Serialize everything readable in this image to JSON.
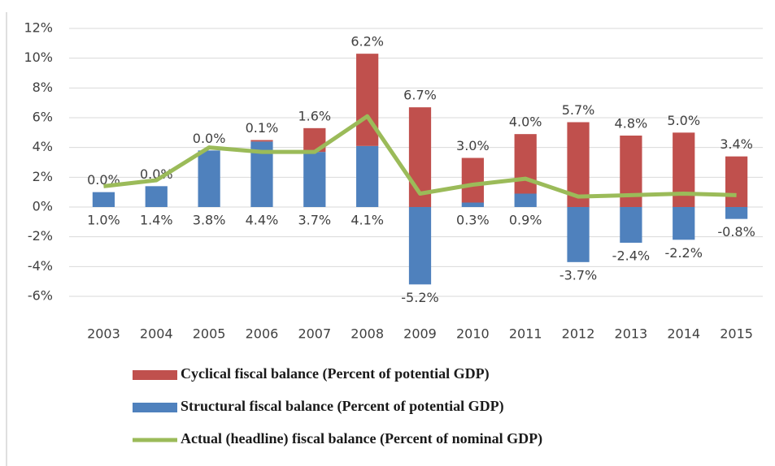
{
  "chart_data": {
    "type": "bar",
    "categories": [
      "2003",
      "2004",
      "2005",
      "2006",
      "2007",
      "2008",
      "2009",
      "2010",
      "2011",
      "2012",
      "2013",
      "2014",
      "2015"
    ],
    "series": [
      {
        "name": "Cyclical fiscal balance (Percent of potential GDP)",
        "color": "#c0504d",
        "kind": "bar",
        "values": [
          0.0,
          0.0,
          0.0,
          0.1,
          1.6,
          6.2,
          6.7,
          3.0,
          4.0,
          5.7,
          4.8,
          5.0,
          3.4
        ],
        "value_labels": [
          "0.0%",
          "0.0%",
          "0.0%",
          "0.1%",
          "1.6%",
          "6.2%",
          "6.7%",
          "3.0%",
          "4.0%",
          "5.7%",
          "4.8%",
          "5.0%",
          "3.4%"
        ]
      },
      {
        "name": "Structural fiscal balance (Percent of potential GDP)",
        "color": "#4f81bd",
        "kind": "bar",
        "values": [
          1.0,
          1.4,
          3.8,
          4.4,
          3.7,
          4.1,
          -5.2,
          0.3,
          0.9,
          -3.7,
          -2.4,
          -2.2,
          -0.8
        ],
        "value_labels": [
          "1.0%",
          "1.4%",
          "3.8%",
          "4.4%",
          "3.7%",
          "4.1%",
          "-5.2%",
          "0.3%",
          "0.9%",
          "-3.7%",
          "-2.4%",
          "-2.2%",
          "-0.8%"
        ]
      },
      {
        "name": "Actual (headline) fiscal balance (Percent of nominal GDP)",
        "color": "#9bbb59",
        "kind": "line",
        "values": [
          1.4,
          1.8,
          4.0,
          3.7,
          3.7,
          6.1,
          0.9,
          1.5,
          1.9,
          0.7,
          0.8,
          0.9,
          0.8
        ]
      }
    ],
    "ylim": [
      -6,
      12
    ],
    "yticks": [
      {
        "value": -6,
        "label": "-6%"
      },
      {
        "value": -4,
        "label": "-4%"
      },
      {
        "value": -2,
        "label": "-2%"
      },
      {
        "value": 0,
        "label": "0%"
      },
      {
        "value": 2,
        "label": "2%"
      },
      {
        "value": 4,
        "label": "4%"
      },
      {
        "value": 6,
        "label": "6%"
      },
      {
        "value": 8,
        "label": "8%"
      },
      {
        "value": 10,
        "label": "10%"
      },
      {
        "value": 12,
        "label": "12%"
      }
    ],
    "grid": true
  }
}
